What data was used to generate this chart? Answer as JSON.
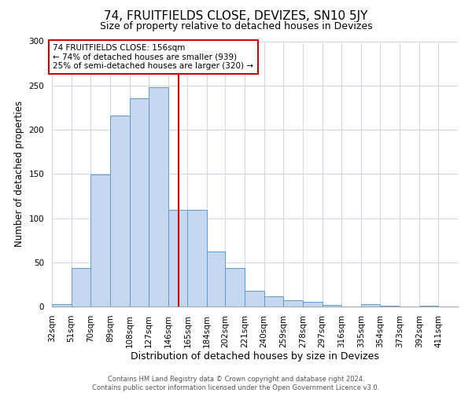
{
  "title": "74, FRUITFIELDS CLOSE, DEVIZES, SN10 5JY",
  "subtitle": "Size of property relative to detached houses in Devizes",
  "xlabel": "Distribution of detached houses by size in Devizes",
  "ylabel": "Number of detached properties",
  "bin_labels": [
    "32sqm",
    "51sqm",
    "70sqm",
    "89sqm",
    "108sqm",
    "127sqm",
    "146sqm",
    "165sqm",
    "184sqm",
    "202sqm",
    "221sqm",
    "240sqm",
    "259sqm",
    "278sqm",
    "297sqm",
    "316sqm",
    "335sqm",
    "354sqm",
    "373sqm",
    "392sqm",
    "411sqm"
  ],
  "bin_edges": [
    32,
    51,
    70,
    89,
    108,
    127,
    146,
    165,
    184,
    202,
    221,
    240,
    259,
    278,
    297,
    316,
    335,
    354,
    373,
    392,
    411
  ],
  "bar_heights": [
    3,
    44,
    149,
    216,
    236,
    248,
    109,
    109,
    62,
    44,
    18,
    12,
    7,
    5,
    2,
    0,
    3,
    1,
    0,
    1
  ],
  "bar_color": "#c5d8f0",
  "bar_edge_color": "#5b9bd5",
  "vline_x": 156,
  "vline_color": "#cc0000",
  "annotation_text": "74 FRUITFIELDS CLOSE: 156sqm\n← 74% of detached houses are smaller (939)\n25% of semi-detached houses are larger (320) →",
  "annotation_box_color": "#ffffff",
  "annotation_box_edge": "#cc0000",
  "ylim": [
    0,
    300
  ],
  "yticks": [
    0,
    50,
    100,
    150,
    200,
    250,
    300
  ],
  "footer_line1": "Contains HM Land Registry data © Crown copyright and database right 2024.",
  "footer_line2": "Contains public sector information licensed under the Open Government Licence v3.0.",
  "title_fontsize": 11,
  "subtitle_fontsize": 9,
  "xlabel_fontsize": 9,
  "ylabel_fontsize": 8.5,
  "tick_fontsize": 7.5,
  "annotation_fontsize": 7.5,
  "footer_fontsize": 6
}
